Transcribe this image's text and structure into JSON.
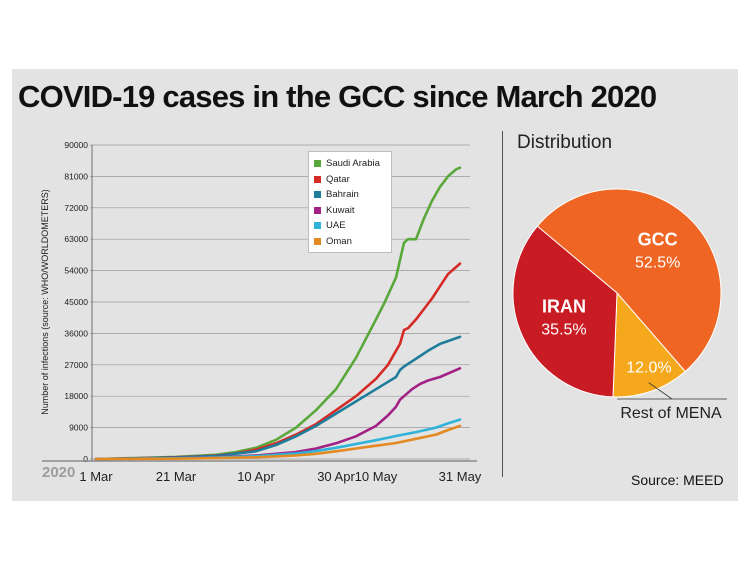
{
  "header": {
    "title": "COVID-19 cases in the GCC since March 2020"
  },
  "source": "Source: MEED",
  "year_label": "2020",
  "chart_data": [
    {
      "type": "line",
      "title": "COVID-19 cases in the GCC since March 2020",
      "ylabel": "Number of infections  (source: WHO/WORLDOMETERS)",
      "xlabel": "",
      "ylim": [
        0,
        90000
      ],
      "yticks": [
        0,
        9000,
        18000,
        27000,
        36000,
        45000,
        54000,
        63000,
        72000,
        81000,
        90000
      ],
      "ytick_labels": [
        "0",
        "9000",
        "18000",
        "27000",
        "36000",
        "45000",
        "54000",
        "63000",
        "72000",
        "81000",
        "90000"
      ],
      "xlim": [
        0,
        91
      ],
      "xticks": [
        {
          "label": "1 Mar",
          "day": 0
        },
        {
          "label": "21 Mar",
          "day": 20
        },
        {
          "label": "10 Apr",
          "day": 40
        },
        {
          "label": "30 Apr",
          "day": 60
        },
        {
          "label": "10 May",
          "day": 70
        },
        {
          "label": "31 May",
          "day": 91
        }
      ],
      "grid": "horizontal",
      "legend_position": "top-center",
      "series": [
        {
          "name": "Saudi Arabia",
          "color": "#5aa83c",
          "x": [
            0,
            10,
            20,
            30,
            35,
            40,
            45,
            50,
            55,
            60,
            65,
            70,
            72,
            75,
            77,
            78,
            80,
            82,
            84,
            86,
            88,
            90,
            91
          ],
          "y": [
            0,
            300,
            600,
            1200,
            2000,
            3200,
            5500,
            9000,
            14000,
            20000,
            29000,
            40000,
            44500,
            52000,
            62000,
            63000,
            63000,
            69000,
            74000,
            78000,
            81000,
            83000,
            83500
          ]
        },
        {
          "name": "Qatar",
          "color": "#d42b27",
          "x": [
            0,
            10,
            20,
            30,
            35,
            40,
            45,
            50,
            55,
            60,
            65,
            70,
            73,
            75,
            76,
            77,
            78,
            80,
            82,
            84,
            86,
            88,
            91
          ],
          "y": [
            0,
            200,
            500,
            1000,
            1600,
            2700,
            4500,
            7000,
            10000,
            14000,
            18000,
            23000,
            27000,
            31000,
            33000,
            37000,
            37500,
            40000,
            43000,
            46000,
            49500,
            53000,
            56000
          ]
        },
        {
          "name": "Bahrain",
          "color": "#1f7d9a",
          "x": [
            0,
            10,
            20,
            30,
            40,
            45,
            50,
            55,
            60,
            65,
            70,
            75,
            76,
            77,
            79,
            81,
            83,
            86,
            91
          ],
          "y": [
            0,
            200,
            450,
            900,
            2200,
            4000,
            6500,
            9500,
            13000,
            16500,
            20000,
            23500,
            25500,
            26500,
            28000,
            29500,
            31000,
            33000,
            35000
          ]
        },
        {
          "name": "Kuwait",
          "color": "#a22185",
          "x": [
            0,
            10,
            20,
            30,
            40,
            50,
            55,
            60,
            65,
            70,
            73,
            75,
            76,
            77,
            79,
            81,
            83,
            86,
            91
          ],
          "y": [
            0,
            100,
            250,
            500,
            1000,
            2000,
            3000,
            4500,
            6500,
            9500,
            12500,
            15000,
            17000,
            18000,
            20000,
            21500,
            22500,
            23500,
            26000
          ]
        },
        {
          "name": "UAE",
          "color": "#2fb3d8",
          "x": [
            0,
            10,
            20,
            30,
            40,
            50,
            55,
            60,
            65,
            70,
            75,
            80,
            85,
            88,
            91
          ],
          "y": [
            0,
            100,
            200,
            400,
            800,
            1600,
            2300,
            3200,
            4300,
            5400,
            6600,
            7700,
            9000,
            10200,
            11300
          ]
        },
        {
          "name": "Oman",
          "color": "#e38a23",
          "x": [
            0,
            10,
            20,
            30,
            40,
            50,
            55,
            60,
            65,
            70,
            75,
            80,
            85,
            88,
            91
          ],
          "y": [
            0,
            50,
            100,
            250,
            500,
            1000,
            1500,
            2200,
            3000,
            3800,
            4600,
            5800,
            7000,
            8300,
            9500
          ]
        }
      ]
    },
    {
      "type": "pie",
      "title": "Distribution",
      "slices": [
        {
          "name": "GCC",
          "label": "GCC",
          "value": 52.5,
          "value_label": "52.5%",
          "color": "#ef6523"
        },
        {
          "name": "Rest of MENA",
          "label": "Rest of MENA",
          "value": 12.0,
          "value_label": "12.0%",
          "color": "#f5a81c"
        },
        {
          "name": "IRAN",
          "label": "IRAN",
          "value": 35.5,
          "value_label": "35.5%",
          "color": "#c91b23"
        }
      ]
    }
  ]
}
